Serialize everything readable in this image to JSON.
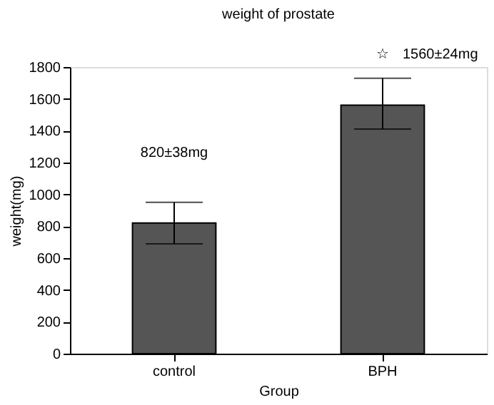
{
  "chart_data": {
    "type": "bar",
    "title": "weight of prostate",
    "xlabel": "Group",
    "ylabel": "weight(mg)",
    "categories": [
      "control",
      "BPH"
    ],
    "values": [
      820,
      1560
    ],
    "color": "#555555",
    "errors": [
      [
        690,
        950
      ],
      [
        1410,
        1730
      ]
    ],
    "ylim": [
      0,
      1800
    ],
    "yticks": [
      0,
      200,
      400,
      600,
      800,
      1000,
      1200,
      1400,
      1600,
      1800
    ],
    "grid": false,
    "annotations": [
      "820±38mg",
      "☆",
      "1560±24mg"
    ]
  }
}
